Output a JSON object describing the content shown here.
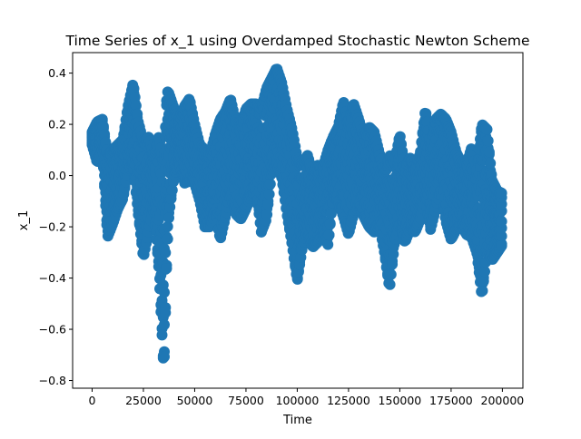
{
  "chart_data": {
    "type": "scatter",
    "title": "Time Series of x_1 using Overdamped Stochastic Newton Scheme",
    "xlabel": "Time",
    "ylabel": "x_1",
    "xlim": [
      -9500,
      210000
    ],
    "ylim": [
      -0.83,
      0.48
    ],
    "xticks": [
      0,
      25000,
      50000,
      75000,
      100000,
      125000,
      150000,
      175000,
      200000
    ],
    "xtick_labels": [
      "0",
      "25000",
      "50000",
      "75000",
      "100000",
      "125000",
      "150000",
      "175000",
      "200000"
    ],
    "yticks": [
      -0.8,
      -0.6,
      -0.4,
      -0.2,
      0.0,
      0.2,
      0.4
    ],
    "ytick_labels": [
      "−0.8",
      "−0.6",
      "−0.4",
      "−0.2",
      "0.0",
      "0.2",
      "0.4"
    ],
    "grid": false,
    "series": [
      {
        "color": "#1f77b4",
        "marker": "o",
        "envelope": {
          "x": [
            0,
            2500,
            5000,
            7500,
            10000,
            12500,
            15000,
            17500,
            20000,
            22500,
            25000,
            27500,
            30000,
            32500,
            35000,
            36500,
            37500,
            40000,
            42500,
            45000,
            47500,
            50000,
            52500,
            55000,
            57500,
            60000,
            62500,
            65000,
            67500,
            70000,
            72500,
            75000,
            77500,
            80000,
            82500,
            85000,
            87500,
            90000,
            92500,
            95000,
            97500,
            100000,
            102500,
            105000,
            107500,
            110000,
            112500,
            115000,
            117500,
            120000,
            122500,
            125000,
            127500,
            130000,
            132500,
            135000,
            137500,
            140000,
            142500,
            145000,
            147500,
            150000,
            152500,
            155000,
            157500,
            160000,
            162500,
            165000,
            167500,
            170000,
            172500,
            175000,
            177500,
            180000,
            182500,
            185000,
            187500,
            190000,
            192500,
            195000,
            197500,
            200000
          ],
          "upper": [
            0.17,
            0.21,
            0.22,
            0.08,
            0.1,
            0.12,
            0.14,
            0.27,
            0.36,
            0.21,
            0.13,
            0.15,
            0.08,
            0.15,
            0.05,
            0.33,
            0.32,
            0.26,
            0.22,
            0.27,
            0.3,
            0.2,
            0.12,
            0.1,
            0.08,
            0.16,
            0.22,
            0.25,
            0.3,
            0.21,
            0.19,
            0.26,
            0.28,
            0.28,
            0.26,
            0.34,
            0.38,
            0.42,
            0.36,
            0.26,
            0.18,
            0.07,
            0.04,
            0.08,
            0.01,
            0.04,
            0.03,
            0.1,
            0.15,
            0.19,
            0.29,
            0.21,
            0.28,
            0.22,
            0.15,
            0.19,
            0.17,
            0.09,
            0.01,
            0.08,
            0.05,
            0.16,
            0.03,
            0.07,
            0.02,
            0.09,
            0.26,
            0.11,
            0.22,
            0.24,
            0.22,
            0.17,
            0.09,
            0.05,
            0.04,
            0.11,
            0.02,
            0.2,
            0.18,
            -0.02,
            -0.06,
            -0.07
          ],
          "lower": [
            0.12,
            0.05,
            0.1,
            -0.24,
            -0.19,
            -0.13,
            -0.09,
            0.02,
            0.05,
            -0.15,
            -0.32,
            -0.22,
            -0.12,
            -0.36,
            -0.77,
            -0.3,
            -0.15,
            0.0,
            0.05,
            -0.03,
            -0.02,
            -0.03,
            -0.1,
            -0.2,
            -0.2,
            -0.14,
            -0.25,
            -0.16,
            -0.07,
            -0.15,
            -0.17,
            -0.13,
            -0.08,
            -0.06,
            -0.22,
            -0.17,
            0.01,
            0.05,
            -0.01,
            -0.15,
            -0.27,
            -0.41,
            -0.28,
            -0.22,
            -0.28,
            -0.26,
            -0.23,
            -0.27,
            -0.08,
            -0.1,
            -0.16,
            -0.23,
            -0.15,
            -0.12,
            -0.16,
            -0.2,
            -0.22,
            -0.19,
            -0.3,
            -0.44,
            -0.26,
            -0.19,
            -0.26,
            -0.21,
            -0.22,
            -0.17,
            -0.08,
            -0.21,
            -0.13,
            -0.06,
            -0.18,
            -0.25,
            -0.21,
            -0.19,
            -0.23,
            -0.24,
            -0.3,
            -0.47,
            -0.3,
            -0.33,
            -0.3,
            -0.27
          ]
        }
      }
    ]
  }
}
